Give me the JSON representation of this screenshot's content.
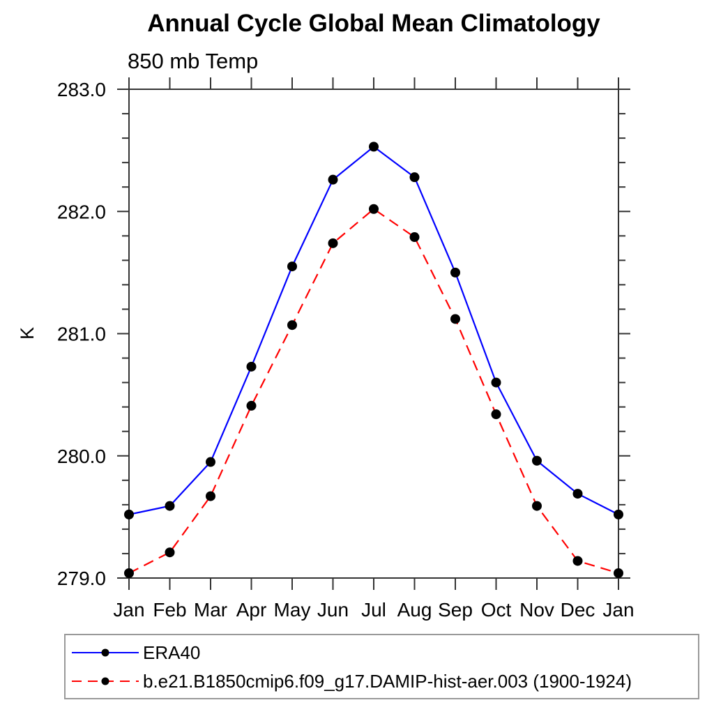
{
  "title": "Annual Cycle Global Mean Climatology",
  "subtitle": "850 mb Temp",
  "chart_data": {
    "type": "line",
    "title": "Annual Cycle Global Mean Climatology",
    "subtitle": "850 mb Temp",
    "xlabel": "",
    "ylabel": "K",
    "x_categories": [
      "Jan",
      "Feb",
      "Mar",
      "Apr",
      "May",
      "Jun",
      "Jul",
      "Aug",
      "Sep",
      "Oct",
      "Nov",
      "Dec",
      "Jan"
    ],
    "ylim": [
      279.0,
      283.0
    ],
    "y_major_step": 1.0,
    "y_minor_step": 0.2,
    "y_tick_format_decimals": 1,
    "grid": false,
    "legend_position": "bottom-left",
    "axis_color": "#333333",
    "marker": {
      "shape": "circle",
      "color": "#000000"
    },
    "series": [
      {
        "name": "ERA40",
        "color": "#0000ff",
        "line_style": "solid",
        "values": [
          279.52,
          279.59,
          279.95,
          280.73,
          281.55,
          282.26,
          282.53,
          282.28,
          281.5,
          280.6,
          279.96,
          279.69,
          279.52
        ]
      },
      {
        "name": "b.e21.B1850cmip6.f09_g17.DAMIP-hist-aer.003 (1900-1924)",
        "color": "#ff0000",
        "line_style": "dashed",
        "values": [
          279.04,
          279.21,
          279.67,
          280.41,
          281.07,
          281.74,
          282.02,
          281.79,
          281.12,
          280.34,
          279.59,
          279.14,
          279.04
        ]
      }
    ]
  }
}
